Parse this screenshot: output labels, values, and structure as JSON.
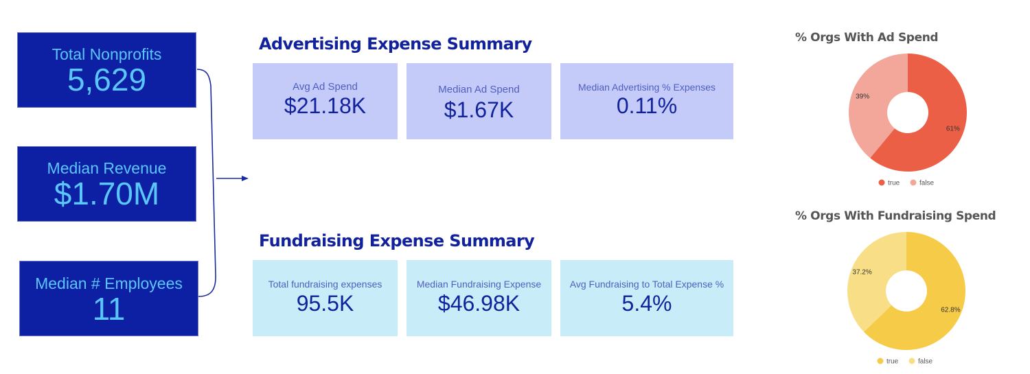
{
  "kpis": [
    {
      "label": "Total Nonprofits",
      "value": "5,629"
    },
    {
      "label": "Median Revenue",
      "value": "$1.70M"
    },
    {
      "label": "Median # Employees",
      "value": "11"
    }
  ],
  "advertising": {
    "title": "Advertising Expense Summary",
    "cards": [
      {
        "label": "Avg Ad Spend",
        "value": "$21.18K"
      },
      {
        "label": "Median Ad Spend",
        "value": "$1.67K"
      },
      {
        "label": "Median Advertising % Expenses",
        "value": "0.11%"
      }
    ]
  },
  "fundraising": {
    "title": "Fundraising Expense Summary",
    "cards": [
      {
        "label": "Total fundraising expenses",
        "value": "95.5K"
      },
      {
        "label": "Median Fundraising Expense",
        "value": "$46.98K"
      },
      {
        "label": "Avg Fundraising to Total Expense %",
        "value": "5.4%"
      }
    ]
  },
  "colors": {
    "kpi_bg": "#0d1fa3",
    "kpi_text": "#5bc6fb",
    "title": "#12229c",
    "adv_card_bg": "#c5cbf8",
    "fund_card_bg": "#c8ecf8"
  },
  "chart_data": [
    {
      "type": "pie",
      "title": "% Orgs With Ad Spend",
      "donut": true,
      "categories": [
        "true",
        "false"
      ],
      "values": [
        61,
        39
      ],
      "labels": [
        "61%",
        "39%"
      ],
      "colors": [
        "#ec5f47",
        "#f3a79b"
      ],
      "legend": [
        "true",
        "false"
      ],
      "legend_position": "bottom"
    },
    {
      "type": "pie",
      "title": "% Orgs With Fundraising Spend",
      "donut": true,
      "categories": [
        "true",
        "false"
      ],
      "values": [
        62.8,
        37.2
      ],
      "labels": [
        "62.8%",
        "37.2%"
      ],
      "colors": [
        "#f5cb48",
        "#f8df87"
      ],
      "legend": [
        "true",
        "false"
      ],
      "legend_position": "bottom"
    }
  ]
}
